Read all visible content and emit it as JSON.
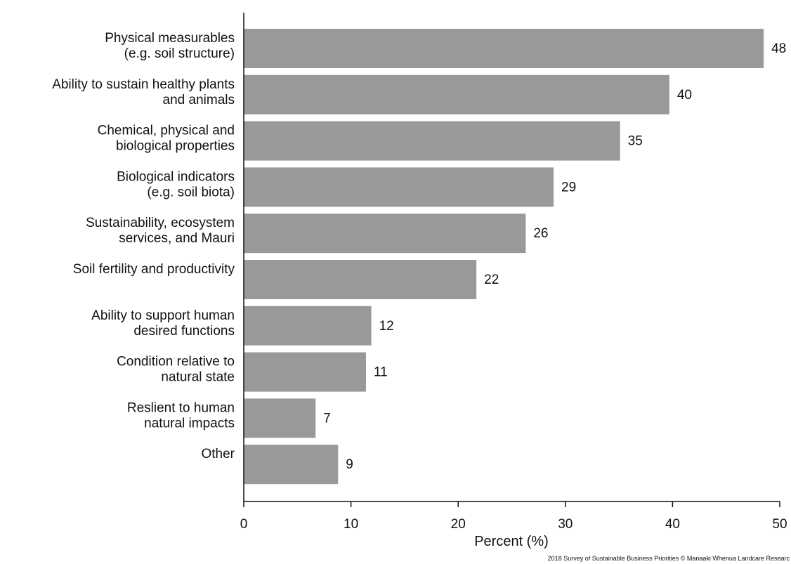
{
  "chart_data": {
    "type": "bar",
    "orientation": "horizontal",
    "categories": [
      [
        "Physical measurables",
        "(e.g. soil structure)"
      ],
      [
        "Ability to sustain healthy plants",
        "and animals"
      ],
      [
        "Chemical, physical and",
        "biological properties"
      ],
      [
        "Biological indicators",
        "(e.g. soil biota)"
      ],
      [
        "Sustainability, ecosystem",
        "services, and Mauri"
      ],
      [
        "Soil fertility and productivity"
      ],
      [
        "Ability to support human",
        "desired functions"
      ],
      [
        "Condition relative to",
        "natural state"
      ],
      [
        "Reslient to human",
        "natural impacts"
      ],
      [
        "Other"
      ]
    ],
    "values": [
      48.5,
      39.7,
      35.1,
      28.9,
      26.3,
      21.7,
      11.9,
      11.4,
      6.7,
      8.8
    ],
    "value_labels": [
      "48",
      "40",
      "35",
      "29",
      "26",
      "22",
      "12",
      "11",
      "7",
      "9"
    ],
    "xlabel": "Percent (%)",
    "ylabel": "",
    "xlim": [
      0,
      50
    ],
    "xticks": [
      0,
      10,
      20,
      30,
      40,
      50
    ],
    "bar_color": "#999999",
    "grid": false,
    "legend": "none",
    "credit": "2018 Survey of Sustainable Business Priorities © Manaaki Whenua Landcare Researc"
  }
}
